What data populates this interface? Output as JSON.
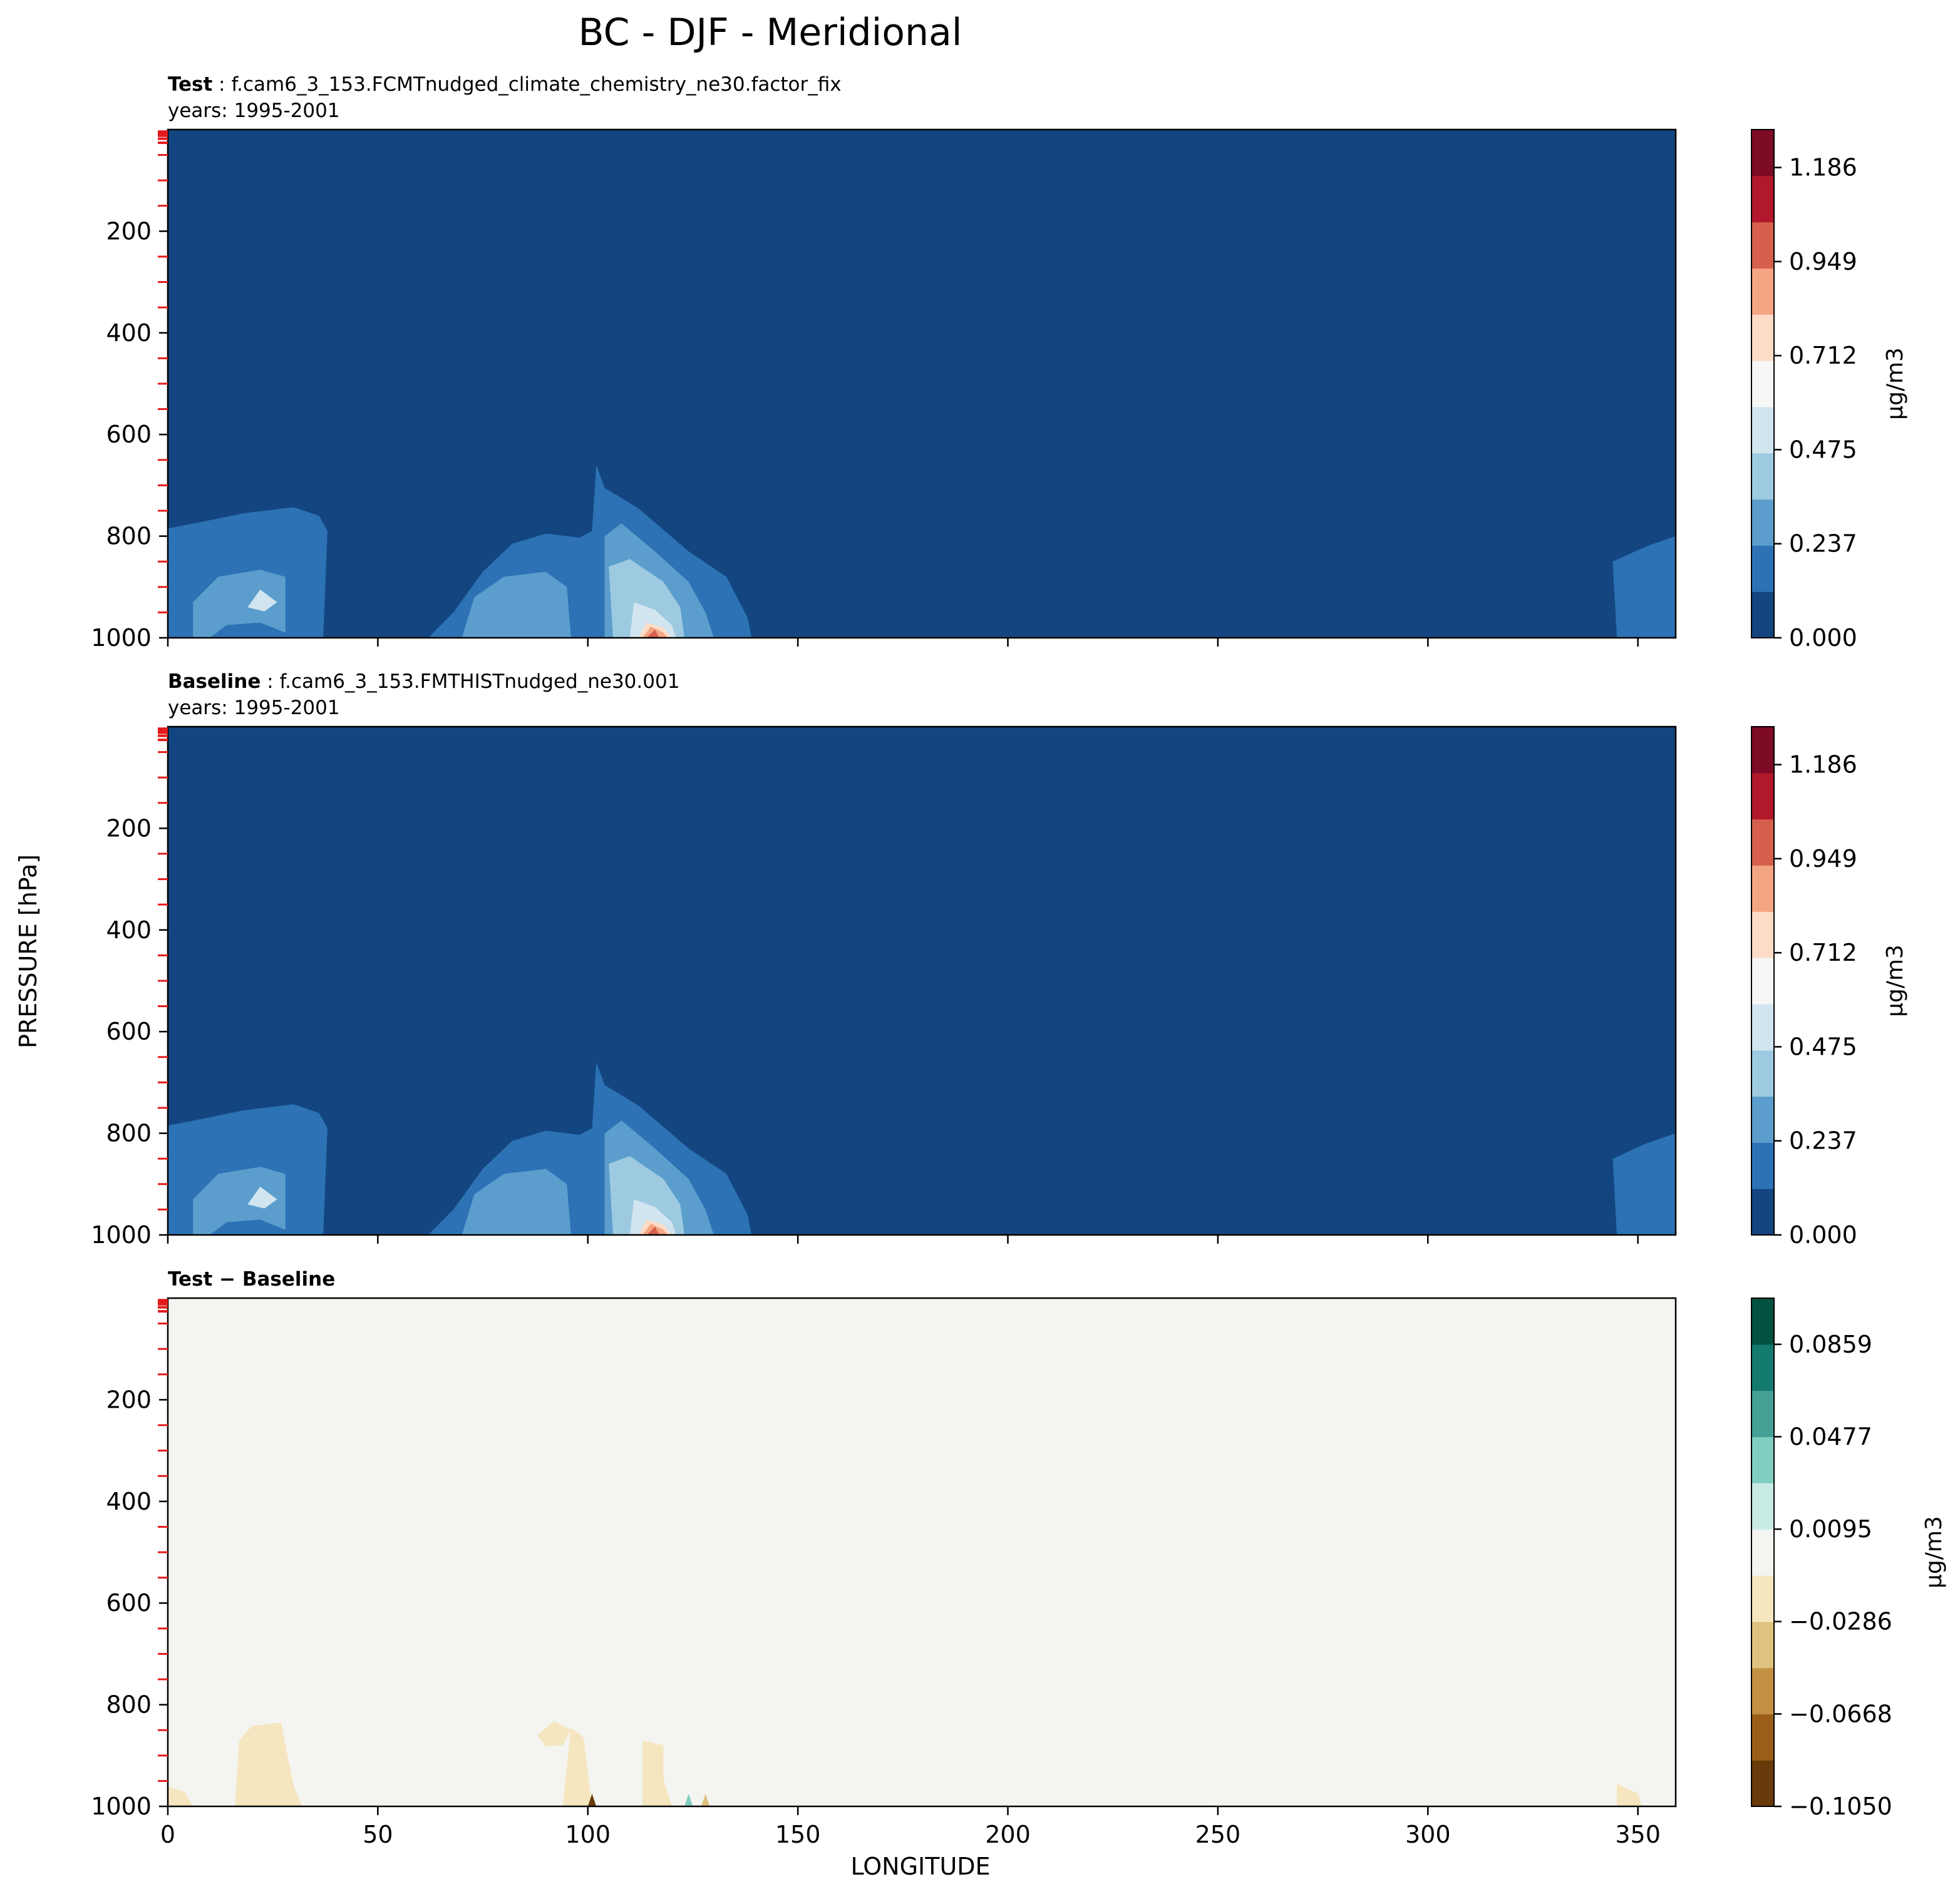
{
  "figure": {
    "title": "BC - DJF - Meridional",
    "ylabel": "PRESSURE [hPa]",
    "xlabel": "LONGITUDE"
  },
  "chart_data": [
    {
      "type": "heatmap",
      "panel_label_bold": "Test",
      "panel_label_text": ": f.cam6_3_153.FCMTnudged_climate_chemistry_ne30.factor_fix",
      "years": "years: 1995-2001",
      "xlim": [
        0,
        359
      ],
      "ylim": [
        1000,
        0
      ],
      "yticks": [
        200,
        400,
        600,
        800,
        1000
      ],
      "xticks": [
        0,
        50,
        100,
        150,
        200,
        250,
        300,
        350
      ],
      "show_xticklabels": false,
      "colorbar": {
        "label": "μg/m3",
        "ticks": [
          "0.000",
          "0.237",
          "0.475",
          "0.712",
          "0.949",
          "1.186"
        ],
        "vmin": 0.0,
        "vmax": 1.2806,
        "colors": [
          "#134680",
          "#2c72b5",
          "#5b9ecd",
          "#9ecae1",
          "#d1e5f0",
          "#f7f7f7",
          "#fddbc7",
          "#f4a582",
          "#d6604d",
          "#b2182b",
          "#7e0b25"
        ]
      }
    },
    {
      "type": "heatmap",
      "panel_label_bold": "Baseline",
      "panel_label_text": ": f.cam6_3_153.FMTHISTnudged_ne30.001",
      "years": "years: 1995-2001",
      "xlim": [
        0,
        359
      ],
      "ylim": [
        1000,
        0
      ],
      "yticks": [
        200,
        400,
        600,
        800,
        1000
      ],
      "xticks": [
        0,
        50,
        100,
        150,
        200,
        250,
        300,
        350
      ],
      "show_xticklabels": false,
      "colorbar": {
        "label": "μg/m3",
        "ticks": [
          "0.000",
          "0.237",
          "0.475",
          "0.712",
          "0.949",
          "1.186"
        ],
        "vmin": 0.0,
        "vmax": 1.2806,
        "colors": [
          "#134680",
          "#2c72b5",
          "#5b9ecd",
          "#9ecae1",
          "#d1e5f0",
          "#f7f7f7",
          "#fddbc7",
          "#f4a582",
          "#d6604d",
          "#b2182b",
          "#7e0b25"
        ]
      }
    },
    {
      "type": "heatmap",
      "panel_label_bold": "Test − Baseline",
      "panel_label_text": "",
      "years": "",
      "xlim": [
        0,
        359
      ],
      "ylim": [
        1000,
        0
      ],
      "yticks": [
        200,
        400,
        600,
        800,
        1000
      ],
      "xticks": [
        0,
        50,
        100,
        150,
        200,
        250,
        300,
        350
      ],
      "show_xticklabels": true,
      "colorbar": {
        "label": "μg/m3",
        "ticks": [
          "−0.1050",
          "−0.0668",
          "−0.0286",
          "0.0095",
          "0.0477",
          "0.0859"
        ],
        "vmin": -0.105,
        "vmax": 0.105,
        "colors": [
          "#6a3b0a",
          "#9b5e18",
          "#c49143",
          "#dfc27d",
          "#f5e6bf",
          "#f4f4f1",
          "#c7eae5",
          "#80cdc1",
          "#45a095",
          "#137a70",
          "#01523f"
        ]
      }
    }
  ]
}
